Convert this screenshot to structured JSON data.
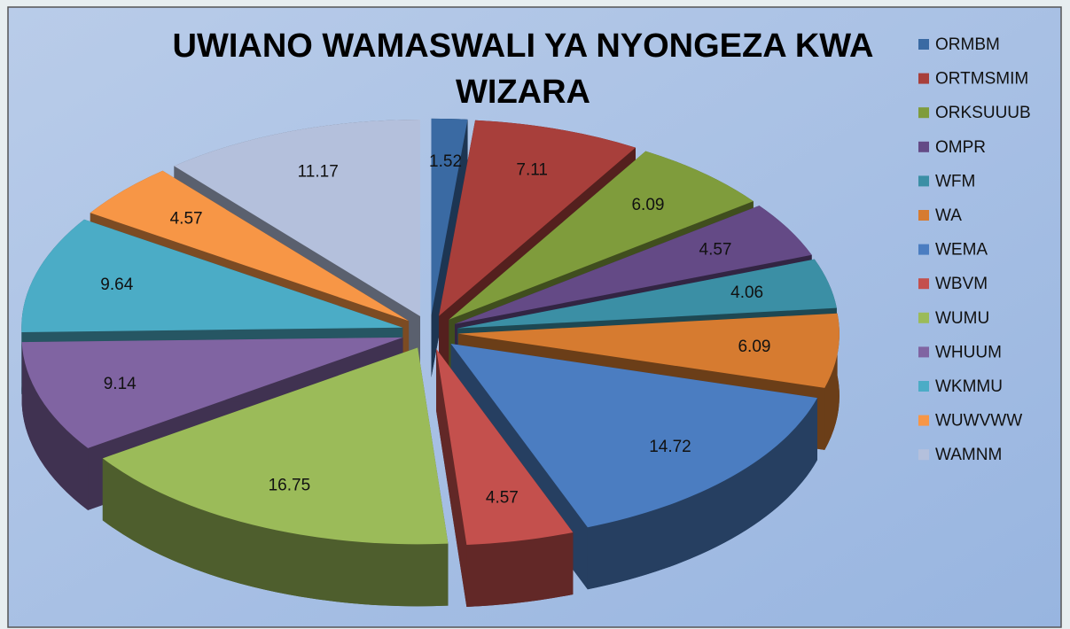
{
  "chart_data": {
    "type": "pie3d",
    "title": "UWIANO WAMASWALI YA NYONGEZA KWA WIZARA",
    "categories": [
      "ORMBM",
      "ORTMSMIM",
      "ORKSUUUB",
      "OMPR",
      "WFM",
      "WA",
      "WEMA",
      "WBVM",
      "WUMU",
      "WHUUM",
      "WKMMU",
      "WUWVWW",
      "WAMNM"
    ],
    "values": [
      1.52,
      7.11,
      6.09,
      4.57,
      4.06,
      6.09,
      14.72,
      4.57,
      16.75,
      9.14,
      9.64,
      4.57,
      11.17
    ],
    "colors": [
      "#3a6aa3",
      "#a83f3b",
      "#7f9c3c",
      "#644a86",
      "#3b8fa5",
      "#d67b30",
      "#4b7dc1",
      "#c4504d",
      "#9bbb59",
      "#8064a2",
      "#4bacc6",
      "#f79646",
      "#b4c0dc"
    ],
    "legend": "right"
  }
}
